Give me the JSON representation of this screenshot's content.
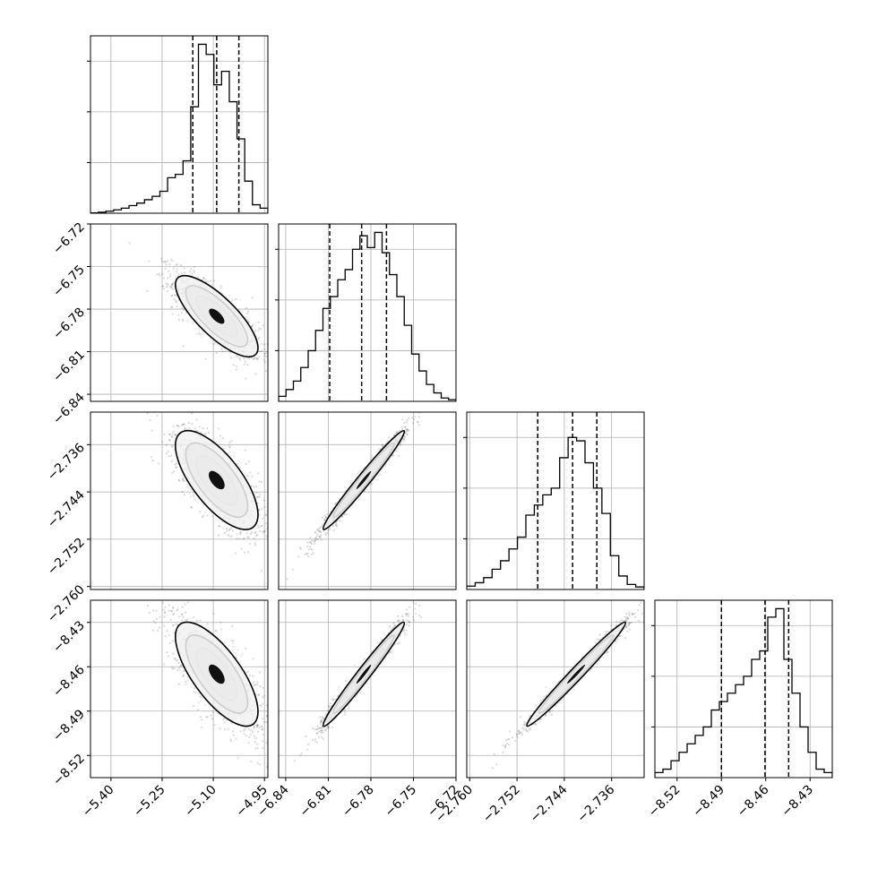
{
  "chart_data": {
    "type": "corner",
    "params": [
      {
        "range": [
          -5.46,
          -4.94
        ],
        "ticks": [
          -5.4,
          -5.25,
          -5.1,
          -4.95
        ],
        "tick_labels": [
          "−5.40",
          "−5.25",
          "−5.10",
          "−4.95"
        ],
        "quantiles": [
          -5.16,
          -5.09,
          -5.025
        ],
        "mean": -5.09,
        "sd": 0.055,
        "hist": [
          0.002,
          0.006,
          0.012,
          0.02,
          0.03,
          0.045,
          0.06,
          0.08,
          0.1,
          0.13,
          0.21,
          0.23,
          0.31,
          0.63,
          1.0,
          0.94,
          0.76,
          0.84,
          0.66,
          0.44,
          0.19,
          0.05,
          0.03
        ]
      },
      {
        "range": [
          -6.845,
          -6.72
        ],
        "ticks": [
          -6.84,
          -6.81,
          -6.78,
          -6.75,
          -6.72
        ],
        "tick_labels": [
          "−6.84",
          "−6.81",
          "−6.78",
          "−6.75",
          "−6.72"
        ],
        "quantiles": [
          -6.809,
          -6.7865,
          -6.769
        ],
        "mean": -6.785,
        "sd": 0.013,
        "hist": [
          0.03,
          0.07,
          0.12,
          0.2,
          0.3,
          0.42,
          0.55,
          0.62,
          0.72,
          0.78,
          0.9,
          0.98,
          0.91,
          1.0,
          0.88,
          0.75,
          0.62,
          0.45,
          0.28,
          0.18,
          0.1,
          0.05,
          0.02,
          0.01
        ]
      },
      {
        "range": [
          -2.7605,
          -2.7305
        ],
        "ticks": [
          -2.76,
          -2.752,
          -2.744,
          -2.736
        ],
        "tick_labels": [
          "−2.760",
          "−2.752",
          "−2.744",
          "−2.736"
        ],
        "quantiles": [
          -2.7485,
          -2.7426,
          -2.7385
        ],
        "mean": -2.742,
        "sd": 0.0038,
        "hist": [
          0.02,
          0.04,
          0.07,
          0.12,
          0.17,
          0.24,
          0.31,
          0.44,
          0.5,
          0.56,
          0.6,
          0.78,
          0.9,
          0.88,
          0.75,
          0.6,
          0.45,
          0.2,
          0.08,
          0.03,
          0.015
        ]
      },
      {
        "range": [
          -8.535,
          -8.415
        ],
        "ticks": [
          -8.52,
          -8.49,
          -8.46,
          -8.43
        ],
        "tick_labels": [
          "−8.52",
          "−8.49",
          "−8.46",
          "−8.43"
        ],
        "quantiles": [
          -8.49,
          -8.4605,
          -8.4445
        ],
        "mean": -8.465,
        "sd": 0.016,
        "hist": [
          0.03,
          0.05,
          0.1,
          0.15,
          0.2,
          0.25,
          0.3,
          0.4,
          0.45,
          0.5,
          0.55,
          0.6,
          0.7,
          0.75,
          0.95,
          1.0,
          0.7,
          0.5,
          0.3,
          0.15,
          0.05,
          0.03
        ]
      }
    ],
    "pairs": [
      {
        "row": 1,
        "col": 0,
        "corr": -0.78
      },
      {
        "row": 2,
        "col": 0,
        "corr": -0.7
      },
      {
        "row": 2,
        "col": 1,
        "corr": 0.98
      },
      {
        "row": 3,
        "col": 0,
        "corr": -0.72
      },
      {
        "row": 3,
        "col": 1,
        "corr": 0.98
      },
      {
        "row": 3,
        "col": 2,
        "corr": 0.985
      }
    ],
    "hist_yticks": [
      0.3,
      0.6,
      0.9
    ],
    "grid": true,
    "contour_levels": [
      0.5,
      1.2,
      1.9
    ]
  }
}
